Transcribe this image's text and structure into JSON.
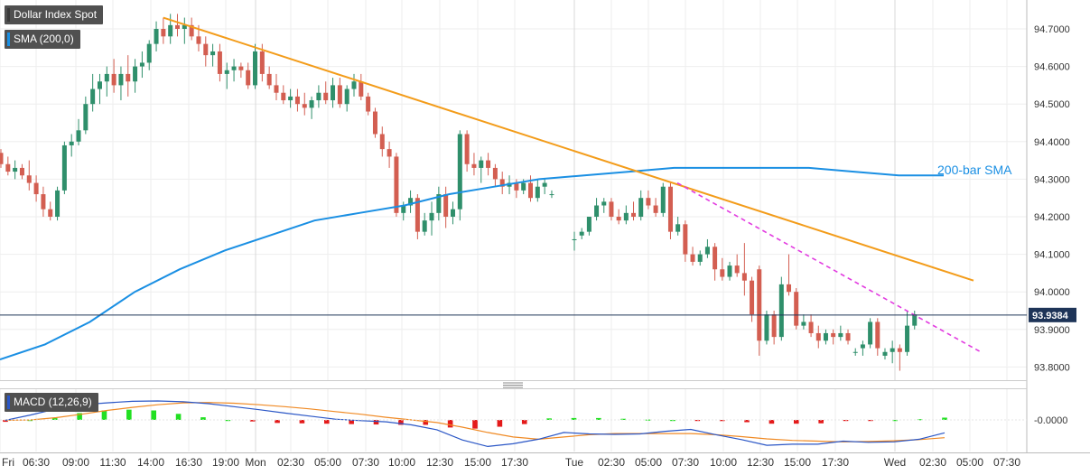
{
  "chart_data": [
    {
      "type": "candlestick",
      "legend_tags": [
        "Dollar Index Spot",
        "SMA (200,0)"
      ],
      "y_ticks": [
        "94.7000",
        "94.6000",
        "94.5000",
        "94.4000",
        "94.3000",
        "94.2000",
        "94.1000",
        "94.0000",
        "93.9000",
        "93.8000"
      ],
      "ylim": [
        93.76,
        94.78
      ],
      "current_price": "93.9384",
      "x_ticks": [
        "Fri",
        "06:30",
        "09:00",
        "11:30",
        "14:00",
        "16:30",
        "19:00",
        "Mon",
        "02:30",
        "05:00",
        "07:30",
        "10:00",
        "12:30",
        "15:00",
        "17:30",
        "Tue",
        "02:30",
        "05:00",
        "07:30",
        "10:00",
        "12:30",
        "15:00",
        "17:30",
        "Wed",
        "02:30",
        "05:00",
        "07:30"
      ],
      "annotation": "200-bar SMA",
      "candles": [
        [
          94.37,
          94.38,
          94.33,
          94.34
        ],
        [
          94.34,
          94.36,
          94.31,
          94.32
        ],
        [
          94.32,
          94.35,
          94.3,
          94.33
        ],
        [
          94.33,
          94.34,
          94.3,
          94.31
        ],
        [
          94.31,
          94.35,
          94.27,
          94.29
        ],
        [
          94.29,
          94.31,
          94.24,
          94.26
        ],
        [
          94.26,
          94.28,
          94.2,
          94.22
        ],
        [
          94.22,
          94.24,
          94.19,
          94.2
        ],
        [
          94.2,
          94.28,
          94.19,
          94.27
        ],
        [
          94.27,
          94.4,
          94.26,
          94.39
        ],
        [
          94.39,
          94.42,
          94.36,
          94.4
        ],
        [
          94.4,
          94.46,
          94.39,
          94.43
        ],
        [
          94.43,
          94.52,
          94.42,
          94.5
        ],
        [
          94.5,
          94.58,
          94.48,
          94.54
        ],
        [
          94.54,
          94.58,
          94.5,
          94.56
        ],
        [
          94.56,
          94.6,
          94.52,
          94.58
        ],
        [
          94.58,
          94.62,
          94.53,
          94.55
        ],
        [
          94.55,
          94.6,
          94.51,
          94.58
        ],
        [
          94.58,
          94.63,
          94.52,
          94.56
        ],
        [
          94.56,
          94.62,
          94.53,
          94.6
        ],
        [
          94.6,
          94.64,
          94.57,
          94.61
        ],
        [
          94.61,
          94.67,
          94.59,
          94.66
        ],
        [
          94.66,
          94.72,
          94.64,
          94.7
        ],
        [
          94.7,
          94.73,
          94.66,
          94.68
        ],
        [
          94.68,
          94.74,
          94.66,
          94.71
        ],
        [
          94.71,
          94.74,
          94.68,
          94.7
        ],
        [
          94.7,
          94.73,
          94.66,
          94.71
        ],
        [
          94.71,
          94.73,
          94.67,
          94.68
        ],
        [
          94.68,
          94.71,
          94.64,
          94.66
        ],
        [
          94.66,
          94.68,
          94.6,
          94.63
        ],
        [
          94.63,
          94.66,
          94.6,
          94.64
        ],
        [
          94.64,
          94.66,
          94.56,
          94.58
        ],
        [
          94.58,
          94.61,
          94.54,
          94.59
        ],
        [
          94.59,
          94.62,
          94.56,
          94.6
        ],
        [
          94.6,
          94.61,
          94.57,
          94.59
        ],
        [
          94.59,
          94.61,
          94.54,
          94.55
        ],
        [
          94.55,
          94.66,
          94.54,
          94.64
        ],
        [
          94.64,
          94.66,
          94.56,
          94.58
        ],
        [
          94.58,
          94.6,
          94.54,
          94.55
        ],
        [
          94.55,
          94.58,
          94.51,
          94.53
        ],
        [
          94.53,
          94.55,
          94.5,
          94.51
        ],
        [
          94.51,
          94.54,
          94.49,
          94.52
        ],
        [
          94.52,
          94.54,
          94.48,
          94.5
        ],
        [
          94.5,
          94.53,
          94.47,
          94.49
        ],
        [
          94.49,
          94.52,
          94.46,
          94.51
        ],
        [
          94.51,
          94.55,
          94.49,
          94.53
        ],
        [
          94.53,
          94.56,
          94.5,
          94.51
        ],
        [
          94.51,
          94.57,
          94.49,
          94.55
        ],
        [
          94.55,
          94.57,
          94.49,
          94.5
        ],
        [
          94.5,
          94.55,
          94.48,
          94.54
        ],
        [
          94.54,
          94.58,
          94.52,
          94.56
        ],
        [
          94.56,
          94.58,
          94.51,
          94.52
        ],
        [
          94.52,
          94.53,
          94.47,
          94.48
        ],
        [
          94.48,
          94.49,
          94.41,
          94.42
        ],
        [
          94.42,
          94.44,
          94.36,
          94.38
        ],
        [
          94.38,
          94.4,
          94.33,
          94.36
        ],
        [
          94.36,
          94.37,
          94.2,
          94.21
        ],
        [
          94.21,
          94.24,
          94.19,
          94.23
        ],
        [
          94.23,
          94.27,
          94.21,
          94.25
        ],
        [
          94.25,
          94.26,
          94.14,
          94.16
        ],
        [
          94.16,
          94.21,
          94.15,
          94.19
        ],
        [
          94.19,
          94.24,
          94.15,
          94.21
        ],
        [
          94.21,
          94.28,
          94.19,
          94.26
        ],
        [
          94.26,
          94.28,
          94.17,
          94.2
        ],
        [
          94.2,
          94.24,
          94.18,
          94.22
        ],
        [
          94.22,
          94.43,
          94.19,
          94.42
        ],
        [
          94.42,
          94.43,
          94.32,
          94.34
        ],
        [
          94.34,
          94.37,
          94.31,
          94.33
        ],
        [
          94.33,
          94.36,
          94.29,
          94.35
        ],
        [
          94.35,
          94.37,
          94.31,
          94.33
        ],
        [
          94.33,
          94.34,
          94.28,
          94.3
        ],
        [
          94.3,
          94.32,
          94.26,
          94.28
        ],
        [
          94.28,
          94.31,
          94.26,
          94.29
        ],
        [
          94.29,
          94.3,
          94.25,
          94.27
        ],
        [
          94.27,
          94.3,
          94.26,
          94.29
        ],
        [
          94.29,
          94.31,
          94.24,
          94.25
        ],
        [
          94.25,
          94.3,
          94.24,
          94.28
        ],
        [
          94.28,
          94.3,
          94.26,
          94.29
        ],
        [
          94.26,
          94.27,
          94.25,
          94.26
        ],
        [
          94.14,
          94.16,
          94.11,
          94.14
        ],
        [
          94.15,
          94.17,
          94.14,
          94.16
        ],
        [
          94.16,
          94.2,
          94.15,
          94.2
        ],
        [
          94.2,
          94.25,
          94.19,
          94.23
        ],
        [
          94.23,
          94.25,
          94.21,
          94.24
        ],
        [
          94.24,
          94.25,
          94.19,
          94.2
        ],
        [
          94.2,
          94.22,
          94.18,
          94.19
        ],
        [
          94.19,
          94.23,
          94.18,
          94.21
        ],
        [
          94.21,
          94.24,
          94.19,
          94.2
        ],
        [
          94.2,
          94.27,
          94.19,
          94.25
        ],
        [
          94.25,
          94.27,
          94.22,
          94.23
        ],
        [
          94.23,
          94.25,
          94.2,
          94.21
        ],
        [
          94.21,
          94.29,
          94.2,
          94.28
        ],
        [
          94.28,
          94.29,
          94.14,
          94.16
        ],
        [
          94.16,
          94.2,
          94.15,
          94.18
        ],
        [
          94.18,
          94.19,
          94.08,
          94.1
        ],
        [
          94.1,
          94.12,
          94.07,
          94.08
        ],
        [
          94.08,
          94.11,
          94.07,
          94.1
        ],
        [
          94.1,
          94.14,
          94.09,
          94.12
        ],
        [
          94.12,
          94.13,
          94.03,
          94.06
        ],
        [
          94.06,
          94.09,
          94.03,
          94.04
        ],
        [
          94.04,
          94.08,
          94.03,
          94.07
        ],
        [
          94.07,
          94.1,
          94.04,
          94.05
        ],
        [
          94.05,
          94.13,
          93.99,
          94.03
        ],
        [
          94.03,
          94.04,
          93.92,
          93.94
        ],
        [
          94.06,
          94.07,
          93.83,
          93.87
        ],
        [
          93.87,
          93.95,
          93.86,
          93.94
        ],
        [
          93.94,
          93.95,
          93.86,
          93.88
        ],
        [
          93.88,
          94.04,
          93.87,
          94.02
        ],
        [
          94.02,
          94.1,
          93.99,
          94.0
        ],
        [
          94.0,
          94.01,
          93.9,
          93.91
        ],
        [
          93.91,
          93.94,
          93.9,
          93.92
        ],
        [
          93.92,
          93.94,
          93.88,
          93.89
        ],
        [
          93.89,
          93.91,
          93.85,
          93.87
        ],
        [
          93.87,
          93.9,
          93.86,
          93.89
        ],
        [
          93.89,
          93.9,
          93.86,
          93.88
        ],
        [
          93.88,
          93.91,
          93.87,
          93.89
        ],
        [
          93.89,
          93.9,
          93.86,
          93.87
        ],
        [
          93.84,
          93.85,
          93.83,
          93.84
        ],
        [
          93.85,
          93.87,
          93.83,
          93.86
        ],
        [
          93.86,
          93.93,
          93.85,
          93.92
        ],
        [
          93.92,
          93.93,
          93.83,
          93.85
        ],
        [
          93.83,
          93.85,
          93.82,
          93.84
        ],
        [
          93.84,
          93.87,
          93.81,
          93.85
        ],
        [
          93.85,
          93.86,
          93.79,
          93.84
        ],
        [
          93.84,
          93.95,
          93.83,
          93.91
        ],
        [
          93.91,
          93.95,
          93.9,
          93.94
        ]
      ],
      "sma": [
        93.82,
        93.86,
        93.92,
        94.0,
        94.06,
        94.11,
        94.15,
        94.19,
        94.21,
        94.23,
        94.26,
        94.28,
        94.3,
        94.31,
        94.32,
        94.33,
        94.33,
        94.33,
        94.33,
        94.32,
        94.31,
        94.31
      ],
      "resistance_line": {
        "from": [
          23,
          94.73
        ],
        "to": [
          121,
          94.03
        ]
      },
      "dashed_trendline": {
        "from": [
          89,
          94.29
        ],
        "to": [
          129,
          93.84
        ]
      }
    },
    {
      "type": "macd",
      "label": "MACD (12,26,9)",
      "y_ticks": [
        "-0.0000"
      ],
      "ylim": [
        -0.081,
        0.081
      ],
      "macd": [
        -0.001,
        0.013,
        0.029,
        0.04,
        0.045,
        0.049,
        0.05,
        0.048,
        0.043,
        0.035,
        0.027,
        0.018,
        0.01,
        0.002,
        -0.002,
        -0.005,
        -0.013,
        -0.026,
        -0.053,
        -0.07,
        -0.063,
        -0.051,
        -0.033,
        -0.037,
        -0.038,
        -0.037,
        -0.03,
        -0.025,
        -0.039,
        -0.052,
        -0.067,
        -0.064,
        -0.064,
        -0.056,
        -0.059,
        -0.058,
        -0.051,
        -0.034
      ],
      "signal": [
        -0.001,
        0.0,
        0.006,
        0.015,
        0.025,
        0.033,
        0.04,
        0.045,
        0.046,
        0.044,
        0.04,
        0.035,
        0.029,
        0.022,
        0.015,
        0.007,
        0.0,
        -0.007,
        -0.019,
        -0.033,
        -0.045,
        -0.051,
        -0.045,
        -0.039,
        -0.036,
        -0.036,
        -0.036,
        -0.036,
        -0.039,
        -0.044,
        -0.05,
        -0.054,
        -0.056,
        -0.058,
        -0.057,
        -0.055,
        -0.052,
        -0.047
      ],
      "histogram": [
        -0.005,
        0.0,
        0.006,
        0.018,
        0.025,
        0.027,
        0.025,
        0.016,
        0.007,
        0.0,
        -0.004,
        -0.008,
        -0.009,
        -0.01,
        -0.011,
        -0.012,
        -0.013,
        -0.013,
        -0.02,
        -0.023,
        -0.018,
        -0.011,
        0.004,
        0.005,
        0.005,
        0.003,
        0.001,
        0.0,
        -0.002,
        -0.003,
        -0.006,
        -0.01,
        -0.01,
        -0.009,
        -0.002,
        -0.001,
        0.0,
        0.002,
        0.006
      ]
    }
  ]
}
